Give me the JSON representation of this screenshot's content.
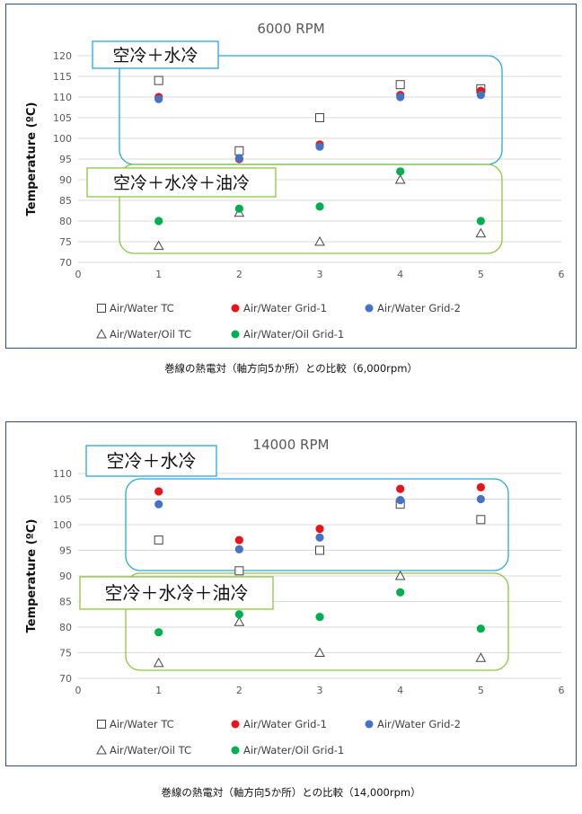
{
  "charts": [
    {
      "chart_data": {
        "type": "scatter",
        "title": "6000 RPM",
        "ylabel": "Temperature (ºC)",
        "xlabel": "",
        "xlim": [
          0,
          6
        ],
        "ylim": [
          70,
          120
        ],
        "xticks": [
          0,
          1,
          2,
          3,
          4,
          5,
          6
        ],
        "yticks": [
          70,
          75,
          80,
          85,
          90,
          95,
          100,
          105,
          110,
          115,
          120
        ],
        "grid": "horizontal",
        "legend": "bottom",
        "series": [
          {
            "name": "Air/Water TC",
            "marker": "square-open",
            "color": "#444444",
            "x": [
              1,
              2,
              3,
              4,
              5
            ],
            "y": [
              114,
              97,
              105,
              113,
              112
            ]
          },
          {
            "name": "Air/Water Grid-1",
            "marker": "circle",
            "color": "#e8141b",
            "x": [
              1,
              2,
              3,
              4,
              5
            ],
            "y": [
              110,
              95,
              98.5,
              110.5,
              111.5
            ]
          },
          {
            "name": "Air/Water Grid-2",
            "marker": "circle",
            "color": "#4472c4",
            "x": [
              1,
              2,
              3,
              4,
              5
            ],
            "y": [
              109.5,
              95.2,
              98,
              110,
              110.5
            ]
          },
          {
            "name": "Air/Water/Oil TC",
            "marker": "triangle-open",
            "color": "#444444",
            "x": [
              1,
              2,
              3,
              4,
              5
            ],
            "y": [
              74,
              82,
              75,
              90,
              77
            ]
          },
          {
            "name": "Air/Water/Oil Grid-1",
            "marker": "circle",
            "color": "#00b050",
            "x": [
              1,
              2,
              3,
              4,
              5
            ],
            "y": [
              80,
              83,
              83.5,
              92,
              80
            ]
          }
        ],
        "annotations": [
          {
            "text": "空冷＋水冷",
            "group": "air-water",
            "box_color": "#2aa7d8"
          },
          {
            "text": "空冷＋水冷＋油冷",
            "group": "air-water-oil",
            "box_color": "#8dc63f"
          }
        ]
      },
      "caption": "巻線の熱電対（軸方向5か所）との比較（6,000rpm）"
    },
    {
      "chart_data": {
        "type": "scatter",
        "title": "14000 RPM",
        "ylabel": "Temperature (ºC)",
        "xlabel": "",
        "xlim": [
          0,
          6
        ],
        "ylim": [
          70,
          110
        ],
        "xticks": [
          0,
          1,
          2,
          3,
          4,
          5,
          6
        ],
        "yticks": [
          70,
          75,
          80,
          85,
          90,
          95,
          100,
          105,
          110
        ],
        "grid": "horizontal",
        "legend": "bottom",
        "series": [
          {
            "name": "Air/Water TC",
            "marker": "square-open",
            "color": "#444444",
            "x": [
              1,
              2,
              3,
              4,
              5
            ],
            "y": [
              97,
              91,
              95,
              104,
              101
            ]
          },
          {
            "name": "Air/Water Grid-1",
            "marker": "circle",
            "color": "#e8141b",
            "x": [
              1,
              2,
              3,
              4,
              5
            ],
            "y": [
              106.5,
              97,
              99.2,
              107,
              107.3
            ]
          },
          {
            "name": "Air/Water Grid-2",
            "marker": "circle",
            "color": "#4472c4",
            "x": [
              1,
              2,
              3,
              4,
              5
            ],
            "y": [
              104,
              95.2,
              97.5,
              104.8,
              105
            ]
          },
          {
            "name": "Air/Water/Oil TC",
            "marker": "triangle-open",
            "color": "#444444",
            "x": [
              1,
              2,
              3,
              4,
              5
            ],
            "y": [
              73,
              81,
              75,
              90,
              74
            ]
          },
          {
            "name": "Air/Water/Oil Grid-1",
            "marker": "circle",
            "color": "#00b050",
            "x": [
              1,
              2,
              3,
              4,
              5
            ],
            "y": [
              79,
              82.5,
              82,
              86.8,
              79.7
            ]
          }
        ],
        "annotations": [
          {
            "text": "空冷＋水冷",
            "group": "air-water",
            "box_color": "#2aa7d8"
          },
          {
            "text": "空冷＋水冷＋油冷",
            "group": "air-water-oil",
            "box_color": "#8dc63f"
          }
        ]
      },
      "caption": "巻線の熱電対（軸方向5か所）との比較（14,000rpm）"
    }
  ]
}
